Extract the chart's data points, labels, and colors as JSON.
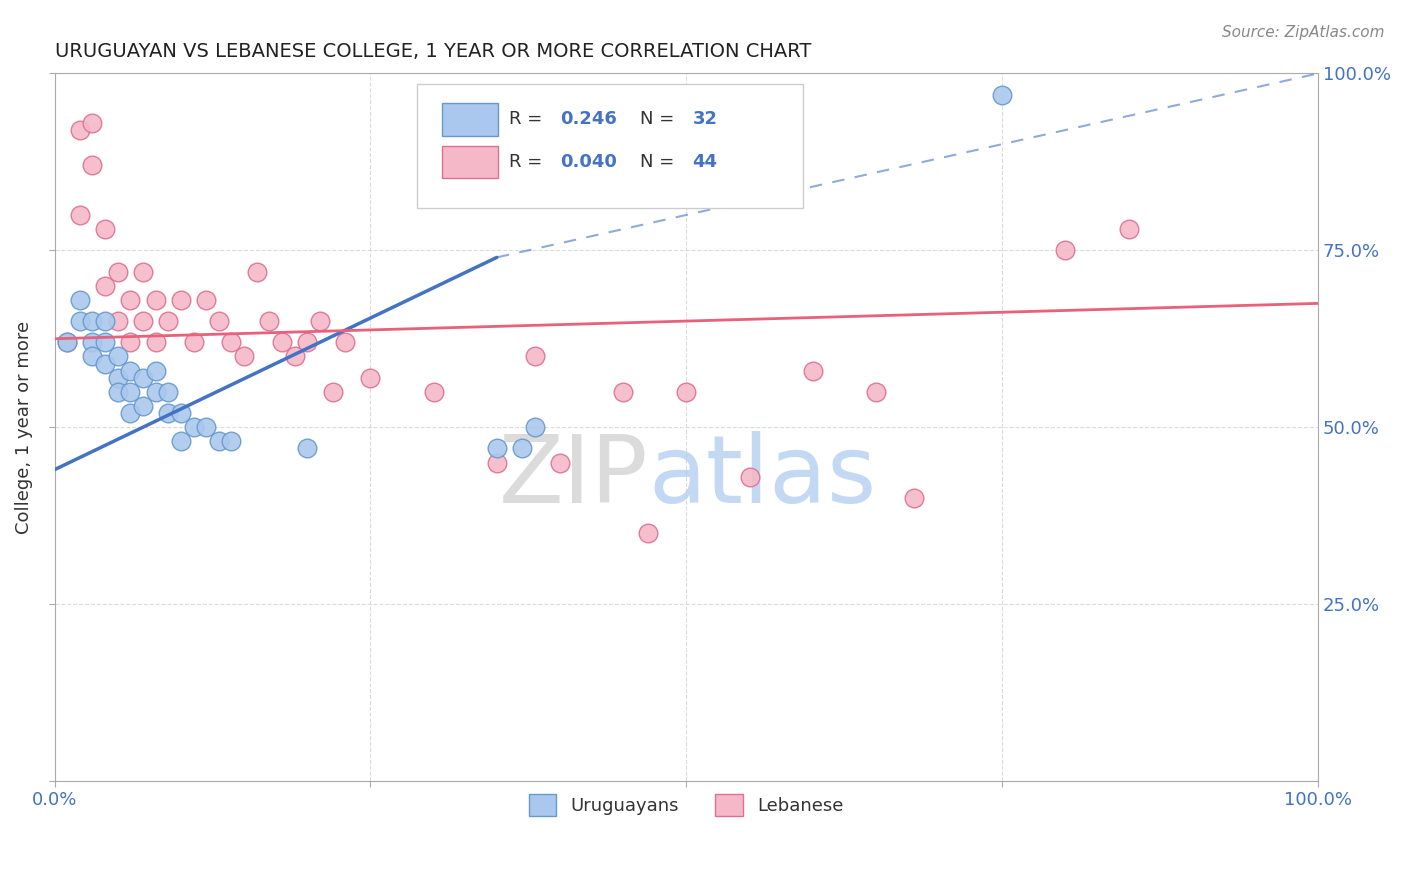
{
  "title": "URUGUAYAN VS LEBANESE COLLEGE, 1 YEAR OR MORE CORRELATION CHART",
  "source": "Source: ZipAtlas.com",
  "ylabel": "College, 1 year or more",
  "watermark_zip": "ZIP",
  "watermark_atlas": "atlas",
  "xlim": [
    0.0,
    1.0
  ],
  "ylim": [
    0.0,
    1.0
  ],
  "grid_color": "#cccccc",
  "background_color": "#ffffff",
  "uruguayan": {
    "R": 0.246,
    "N": 32,
    "color": "#aac8ed",
    "edge_color": "#6699cc",
    "line_color": "#4472c4",
    "x": [
      0.01,
      0.02,
      0.02,
      0.03,
      0.03,
      0.03,
      0.04,
      0.04,
      0.04,
      0.05,
      0.05,
      0.05,
      0.06,
      0.06,
      0.06,
      0.07,
      0.07,
      0.08,
      0.08,
      0.09,
      0.09,
      0.1,
      0.1,
      0.11,
      0.12,
      0.13,
      0.14,
      0.2,
      0.35,
      0.37,
      0.38,
      0.75
    ],
    "y": [
      0.62,
      0.68,
      0.65,
      0.65,
      0.62,
      0.6,
      0.65,
      0.62,
      0.59,
      0.6,
      0.57,
      0.55,
      0.58,
      0.55,
      0.52,
      0.57,
      0.53,
      0.58,
      0.55,
      0.55,
      0.52,
      0.52,
      0.48,
      0.5,
      0.5,
      0.48,
      0.48,
      0.47,
      0.47,
      0.47,
      0.5,
      0.97
    ]
  },
  "lebanese": {
    "R": 0.04,
    "N": 44,
    "color": "#f5b8c8",
    "edge_color": "#dd7090",
    "line_color": "#e8607a",
    "x": [
      0.01,
      0.02,
      0.02,
      0.03,
      0.03,
      0.04,
      0.04,
      0.05,
      0.05,
      0.06,
      0.06,
      0.07,
      0.07,
      0.08,
      0.08,
      0.09,
      0.1,
      0.11,
      0.12,
      0.13,
      0.14,
      0.15,
      0.16,
      0.17,
      0.18,
      0.19,
      0.2,
      0.21,
      0.22,
      0.23,
      0.25,
      0.3,
      0.35,
      0.38,
      0.4,
      0.45,
      0.47,
      0.5,
      0.55,
      0.6,
      0.65,
      0.68,
      0.8,
      0.85
    ],
    "y": [
      0.62,
      0.8,
      0.92,
      0.93,
      0.87,
      0.78,
      0.7,
      0.72,
      0.65,
      0.68,
      0.62,
      0.72,
      0.65,
      0.68,
      0.62,
      0.65,
      0.68,
      0.62,
      0.68,
      0.65,
      0.62,
      0.6,
      0.72,
      0.65,
      0.62,
      0.6,
      0.62,
      0.65,
      0.55,
      0.62,
      0.57,
      0.55,
      0.45,
      0.6,
      0.45,
      0.55,
      0.35,
      0.55,
      0.43,
      0.58,
      0.55,
      0.4,
      0.75,
      0.78
    ]
  },
  "blue_line": {
    "x0": 0.0,
    "y0": 0.44,
    "x1": 0.35,
    "y1": 0.74,
    "x_dash_end": 1.0,
    "y_dash_end": 1.0
  },
  "pink_line": {
    "x0": 0.0,
    "y0": 0.625,
    "x1": 1.0,
    "y1": 0.675
  }
}
